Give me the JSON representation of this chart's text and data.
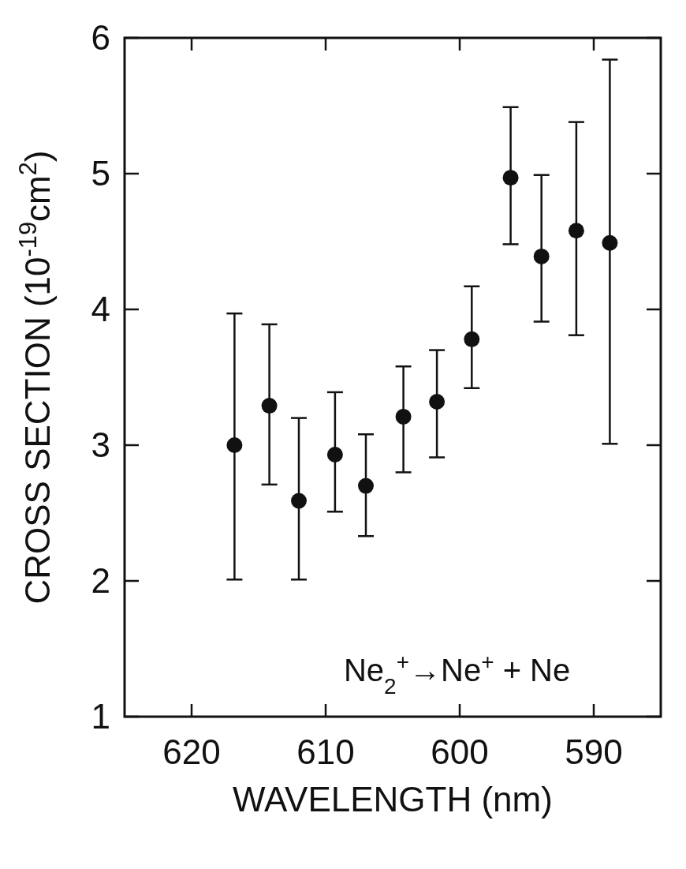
{
  "chart_data": {
    "type": "scatter",
    "xlabel": "WAVELENGTH (nm)",
    "ylabel": "CROSS  SECTION (10$^{-19}$cm$^{2}$)",
    "annotations": [
      "Ne$_{2}$$^{+}$→Ne$^{+}$ + Ne"
    ],
    "x": [
      616.8,
      614.2,
      612.0,
      609.3,
      607.0,
      604.2,
      601.7,
      599.1,
      596.2,
      593.9,
      591.3,
      588.8
    ],
    "values": [
      3.0,
      3.29,
      2.59,
      2.93,
      2.7,
      3.21,
      3.32,
      3.78,
      4.97,
      4.39,
      4.58,
      4.49
    ],
    "errors": [
      [
        2.01,
        3.97
      ],
      [
        2.71,
        3.89
      ],
      [
        2.01,
        3.2
      ],
      [
        2.51,
        3.39
      ],
      [
        2.33,
        3.08
      ],
      [
        2.8,
        3.58
      ],
      [
        2.91,
        3.7
      ],
      [
        3.42,
        4.17
      ],
      [
        4.48,
        5.49
      ],
      [
        3.91,
        4.99
      ],
      [
        3.81,
        5.38
      ],
      [
        3.01,
        5.84
      ]
    ],
    "color": "#111111",
    "marker": "circle",
    "xlim": [
      625,
      585
    ],
    "xticks": [
      620,
      610,
      600,
      590
    ],
    "ylim": [
      1,
      6
    ],
    "yticks": [
      1,
      2,
      3,
      4,
      5,
      6
    ],
    "grid": false
  }
}
